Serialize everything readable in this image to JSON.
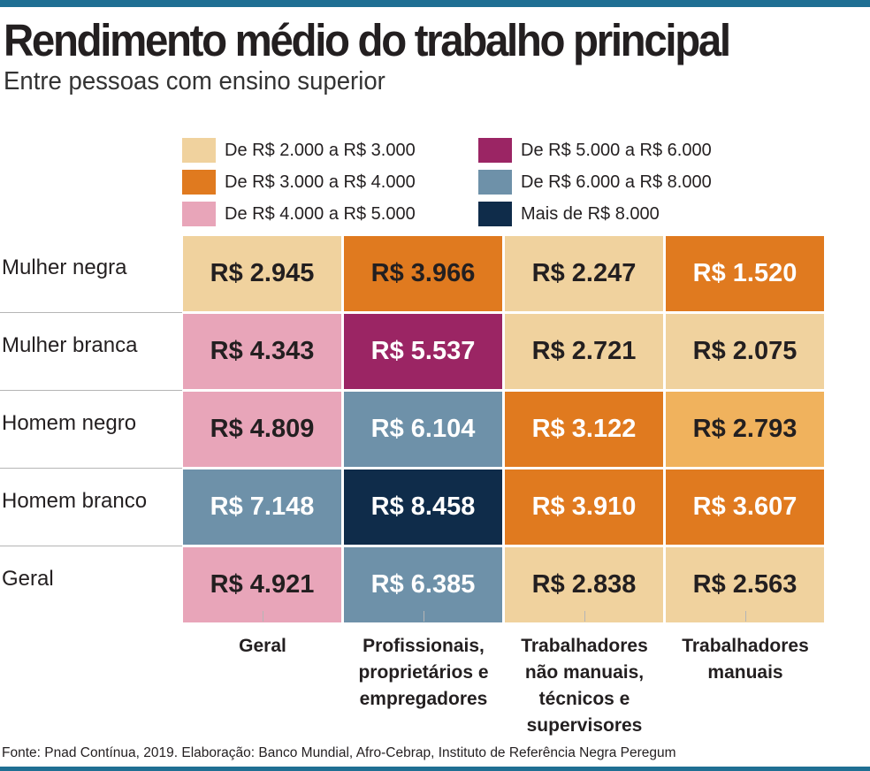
{
  "title": "Rendimento médio do trabalho principal",
  "subtitle": "Entre pessoas com ensino superior",
  "source": "Fonte: Pnad Contínua, 2019. Elaboração: Banco Mundial, Afro-Cebrap, Instituto de Referência Negra Peregum",
  "colors": {
    "accent_bar": "#1f6f93"
  },
  "legend": [
    {
      "label": "De R$ 2.000 a R$ 3.000",
      "color": "#f0d29e",
      "text": "dark"
    },
    {
      "label": "De R$ 3.000 a R$ 4.000",
      "color": "#e07a1f",
      "text": "dark"
    },
    {
      "label": "De R$ 4.000 a R$ 5.000",
      "color": "#e8a5b9",
      "text": "dark"
    },
    {
      "label": "De R$ 5.000 a R$ 6.000",
      "color": "#9b2564",
      "text": "light"
    },
    {
      "label": "De R$ 6.000 a R$ 8.000",
      "color": "#6e91a9",
      "text": "light"
    },
    {
      "label": "Mais de R$ 8.000",
      "color": "#0f2c4a",
      "text": "light"
    }
  ],
  "chart_data": {
    "type": "heatmap",
    "title": "Rendimento médio do trabalho principal",
    "subtitle": "Entre pessoas com ensino superior",
    "rows": [
      "Mulher negra",
      "Mulher branca",
      "Homem negro",
      "Homem branco",
      "Geral"
    ],
    "columns": [
      [
        "Geral"
      ],
      [
        "Profissionais,",
        "proprietários e",
        "empregadores"
      ],
      [
        "Trabalhadores",
        "não manuais,",
        "técnicos e",
        "supervisores"
      ],
      [
        "Trabalhadores",
        "manuais"
      ]
    ],
    "values": [
      [
        2945,
        3966,
        2247,
        1520
      ],
      [
        4343,
        5537,
        2721,
        2075
      ],
      [
        4809,
        6104,
        3122,
        2793
      ],
      [
        7148,
        8458,
        3910,
        3607
      ],
      [
        4921,
        6385,
        2838,
        2563
      ]
    ],
    "labels": [
      [
        "R$ 2.945",
        "R$ 3.966",
        "R$ 2.247",
        "R$ 1.520"
      ],
      [
        "R$ 4.343",
        "R$ 5.537",
        "R$ 2.721",
        "R$ 2.075"
      ],
      [
        "R$ 4.809",
        "R$ 6.104",
        "R$ 3.122",
        "R$ 2.793"
      ],
      [
        "R$ 7.148",
        "R$ 8.458",
        "R$ 3.910",
        "R$ 3.607"
      ],
      [
        "R$ 4.921",
        "R$ 6.385",
        "R$ 2.838",
        "R$ 2.563"
      ]
    ],
    "cell_colors": [
      [
        "#f0d29e",
        "#e07a1f",
        "#f0d29e",
        "#e07a1f"
      ],
      [
        "#e8a5b9",
        "#9b2564",
        "#f0d29e",
        "#f0d29e"
      ],
      [
        "#e8a5b9",
        "#6e91a9",
        "#e07a1f",
        "#f0b25d"
      ],
      [
        "#6e91a9",
        "#0f2c4a",
        "#e07a1f",
        "#e07a1f"
      ],
      [
        "#e8a5b9",
        "#6e91a9",
        "#f0d29e",
        "#f0d29e"
      ]
    ],
    "cell_text": [
      [
        "dark",
        "dark",
        "dark",
        "light"
      ],
      [
        "dark",
        "light",
        "dark",
        "dark"
      ],
      [
        "dark",
        "light",
        "light",
        "dark"
      ],
      [
        "light",
        "light",
        "light",
        "light"
      ],
      [
        "dark",
        "light",
        "dark",
        "dark"
      ]
    ]
  }
}
